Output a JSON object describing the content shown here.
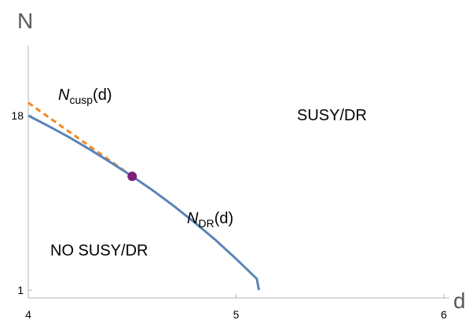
{
  "chart_data": {
    "type": "line",
    "xlabel": "d",
    "ylabel": "N",
    "xlim": [
      4,
      6
    ],
    "x_ticks": [
      "4",
      "5",
      "6"
    ],
    "y_ticks": [
      "1",
      "18"
    ],
    "grid": false,
    "series": [
      {
        "name": "N_DR(d)",
        "label_main": "N",
        "label_sub": "DR",
        "label_suffix": "(d)",
        "color": "#5b84b7",
        "style": "solid",
        "points": [
          [
            4.0,
            18.0
          ],
          [
            4.1,
            16.95
          ],
          [
            4.2,
            15.85
          ],
          [
            4.3,
            14.65
          ],
          [
            4.4,
            13.4
          ],
          [
            4.5,
            12.08
          ],
          [
            4.6,
            10.7
          ],
          [
            4.7,
            9.2
          ],
          [
            4.8,
            7.6
          ],
          [
            4.9,
            5.9
          ],
          [
            5.0,
            4.05
          ],
          [
            5.1,
            2.1
          ],
          [
            5.11,
            1.0
          ]
        ]
      },
      {
        "name": "N_cusp(d)",
        "label_main": "N",
        "label_sub": "cusp",
        "label_suffix": "(d)",
        "color": "#f5871f",
        "style": "dashed",
        "points": [
          [
            4.0,
            19.25
          ],
          [
            4.5,
            12.08
          ]
        ]
      }
    ],
    "marker": {
      "x": 4.5,
      "y": 12.08,
      "color": "#7b1f7b"
    },
    "annotations": [
      {
        "text": "SUSY/DR"
      },
      {
        "text": "NO SUSY/DR"
      }
    ]
  }
}
